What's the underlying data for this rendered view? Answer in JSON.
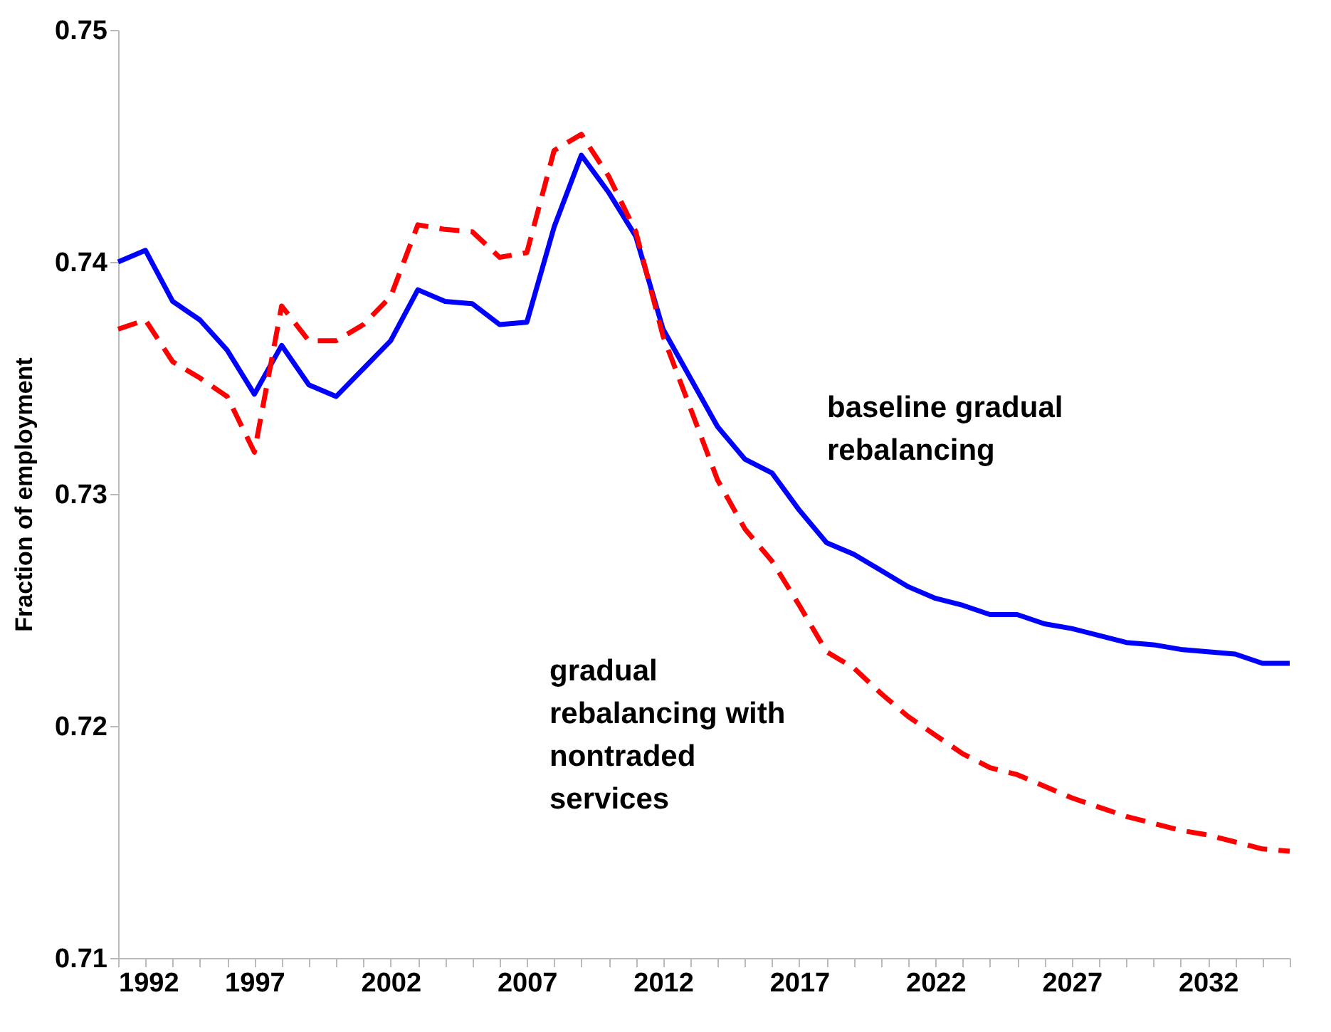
{
  "chart_data": {
    "type": "line",
    "ylabel": "Fraction of employment",
    "x": [
      1992,
      1993,
      1994,
      1995,
      1996,
      1997,
      1998,
      1999,
      2000,
      2001,
      2002,
      2003,
      2004,
      2005,
      2006,
      2007,
      2008,
      2009,
      2010,
      2011,
      2012,
      2013,
      2014,
      2015,
      2016,
      2017,
      2018,
      2019,
      2020,
      2021,
      2022,
      2023,
      2024,
      2025,
      2026,
      2027,
      2028,
      2029,
      2030,
      2031,
      2032,
      2033,
      2034,
      2035
    ],
    "series": [
      {
        "name": "baseline gradual rebalancing",
        "color": "#0000ff",
        "line_style": "solid",
        "values": [
          0.74,
          0.7405,
          0.7383,
          0.7375,
          0.7362,
          0.7343,
          0.7364,
          0.7347,
          0.7342,
          0.7354,
          0.7366,
          0.7388,
          0.7383,
          0.7382,
          0.7373,
          0.7374,
          0.7415,
          0.7446,
          0.743,
          0.7411,
          0.7371,
          0.735,
          0.7329,
          0.7315,
          0.7309,
          0.7293,
          0.7279,
          0.7274,
          0.7267,
          0.726,
          0.7255,
          0.7252,
          0.7248,
          0.7248,
          0.7244,
          0.7242,
          0.7239,
          0.7236,
          0.7235,
          0.7233,
          0.7232,
          0.7231,
          0.7227,
          0.7227
        ]
      },
      {
        "name": "gradual rebalancing with nontraded services",
        "color": "#ff0000",
        "line_style": "dashed",
        "values": [
          0.7371,
          0.7375,
          0.7357,
          0.735,
          0.7342,
          0.7318,
          0.7381,
          0.7366,
          0.7366,
          0.7373,
          0.7385,
          0.7416,
          0.7414,
          0.7413,
          0.7402,
          0.7404,
          0.7448,
          0.7455,
          0.7437,
          0.7413,
          0.7368,
          0.7337,
          0.7306,
          0.7285,
          0.7271,
          0.7252,
          0.7232,
          0.7225,
          0.7214,
          0.7204,
          0.7196,
          0.7188,
          0.7182,
          0.7179,
          0.7174,
          0.7169,
          0.7165,
          0.7161,
          0.7158,
          0.7155,
          0.7153,
          0.715,
          0.7147,
          0.7146
        ]
      }
    ],
    "xlim": [
      1992,
      2035
    ],
    "xticks": [
      1992,
      {
        "value": 1993,
        "label": null
      },
      {
        "value": 1994,
        "label": null
      },
      {
        "value": 1995,
        "label": null
      },
      {
        "value": 1996,
        "label": null
      },
      1997,
      {
        "value": 1998,
        "label": null
      },
      {
        "value": 1999,
        "label": null
      },
      {
        "value": 2000,
        "label": null
      },
      {
        "value": 2001,
        "label": null
      },
      2002,
      {
        "value": 2003,
        "label": null
      },
      {
        "value": 2004,
        "label": null
      },
      {
        "value": 2005,
        "label": null
      },
      {
        "value": 2006,
        "label": null
      },
      2007,
      {
        "value": 2008,
        "label": null
      },
      {
        "value": 2009,
        "label": null
      },
      {
        "value": 2010,
        "label": null
      },
      {
        "value": 2011,
        "label": null
      },
      2012,
      {
        "value": 2013,
        "label": null
      },
      {
        "value": 2014,
        "label": null
      },
      {
        "value": 2015,
        "label": null
      },
      {
        "value": 2016,
        "label": null
      },
      2017,
      {
        "value": 2018,
        "label": null
      },
      {
        "value": 2019,
        "label": null
      },
      {
        "value": 2020,
        "label": null
      },
      {
        "value": 2021,
        "label": null
      },
      2022,
      {
        "value": 2023,
        "label": null
      },
      {
        "value": 2024,
        "label": null
      },
      {
        "value": 2025,
        "label": null
      },
      {
        "value": 2026,
        "label": null
      },
      2027,
      {
        "value": 2028,
        "label": null
      },
      {
        "value": 2029,
        "label": null
      },
      {
        "value": 2030,
        "label": null
      },
      {
        "value": 2031,
        "label": null
      },
      2032,
      {
        "value": 2033,
        "label": null
      },
      {
        "value": 2034,
        "label": null
      },
      {
        "value": 2035,
        "label": null
      }
    ],
    "ylim": [
      0.71,
      0.75
    ],
    "yticks": [
      0.71,
      0.72,
      0.73,
      0.74,
      0.75
    ],
    "grid": false,
    "legend": false,
    "marker": "none"
  }
}
